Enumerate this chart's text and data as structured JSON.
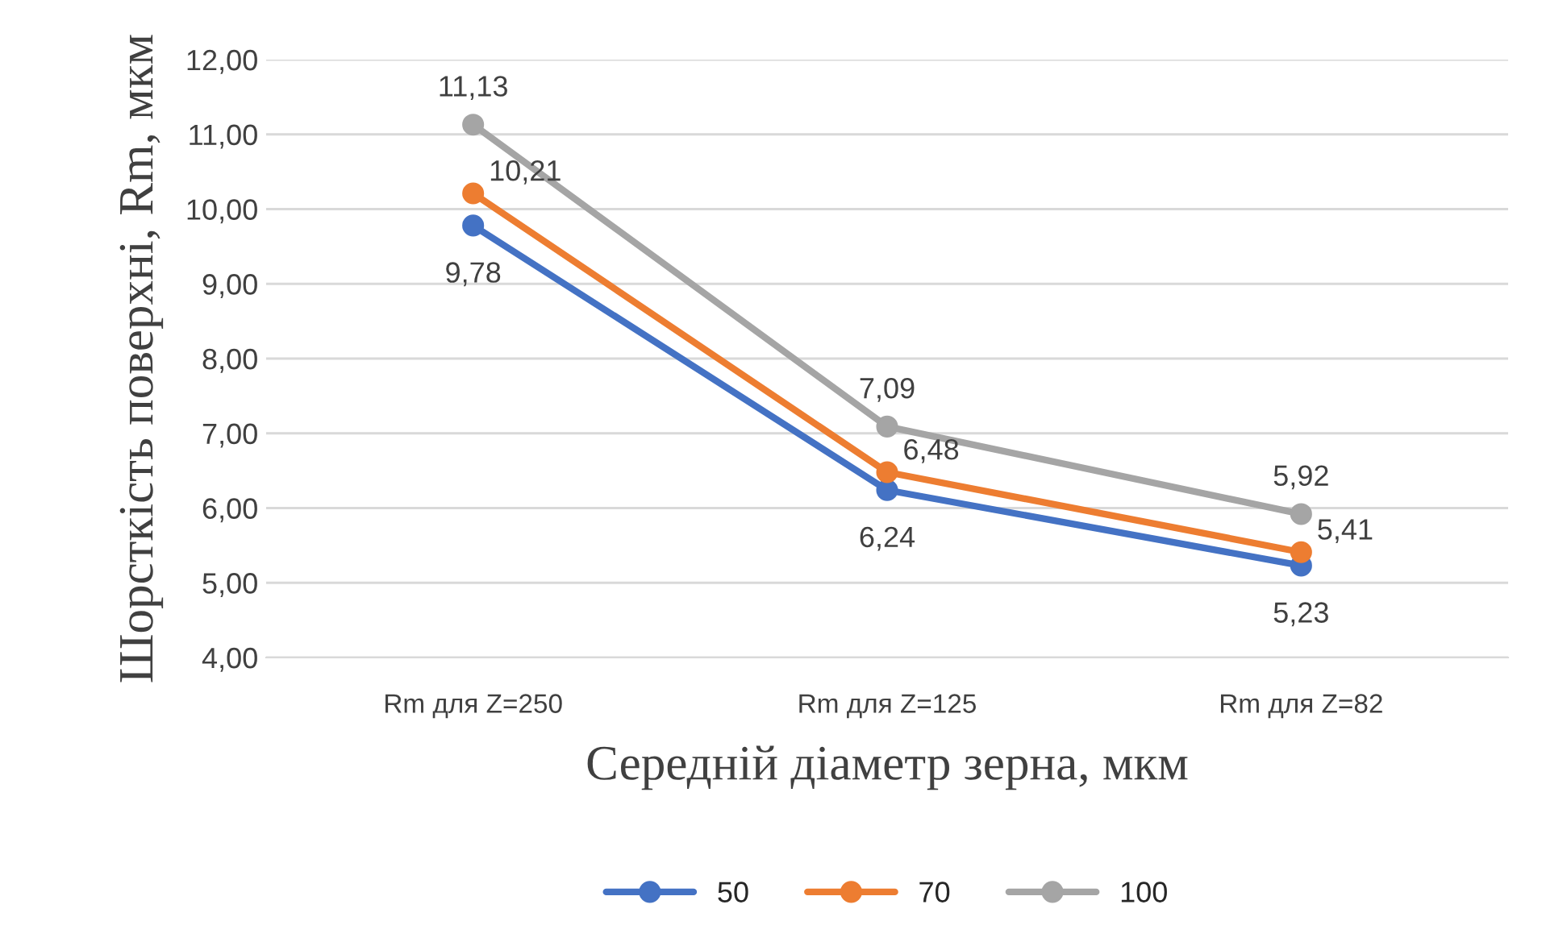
{
  "chart_data": {
    "type": "line",
    "xlabel": "Середній діаметр зерна, мкм",
    "ylabel": "Шорсткість поверхні, Rm, мкм",
    "categories": [
      "Rm для Z=250",
      "Rm для Z=125",
      "Rm для Z=82"
    ],
    "series": [
      {
        "name": "50",
        "color": "#4472c4",
        "values": [
          9.78,
          6.24,
          5.23
        ],
        "value_labels": [
          "9,78",
          "6,24",
          "5,23"
        ]
      },
      {
        "name": "70",
        "color": "#ed7d31",
        "values": [
          10.21,
          6.48,
          5.41
        ],
        "value_labels": [
          "10,21",
          "6,48",
          "5,41"
        ]
      },
      {
        "name": "100",
        "color": "#a5a5a5",
        "values": [
          11.13,
          7.09,
          5.92
        ],
        "value_labels": [
          "11,13",
          "7,09",
          "5,92"
        ]
      }
    ],
    "ylim": [
      4,
      12
    ],
    "yticks": [
      {
        "value": 4,
        "label": "4,00"
      },
      {
        "value": 5,
        "label": "5,00"
      },
      {
        "value": 6,
        "label": "6,00"
      },
      {
        "value": 7,
        "label": "7,00"
      },
      {
        "value": 8,
        "label": "8,00"
      },
      {
        "value": 9,
        "label": "9,00"
      },
      {
        "value": 10,
        "label": "10,00"
      },
      {
        "value": 11,
        "label": "11,00"
      },
      {
        "value": 12,
        "label": "12,00"
      }
    ],
    "grid": "y",
    "legend": "bottom",
    "marker": "circle",
    "line_style": "solid"
  }
}
